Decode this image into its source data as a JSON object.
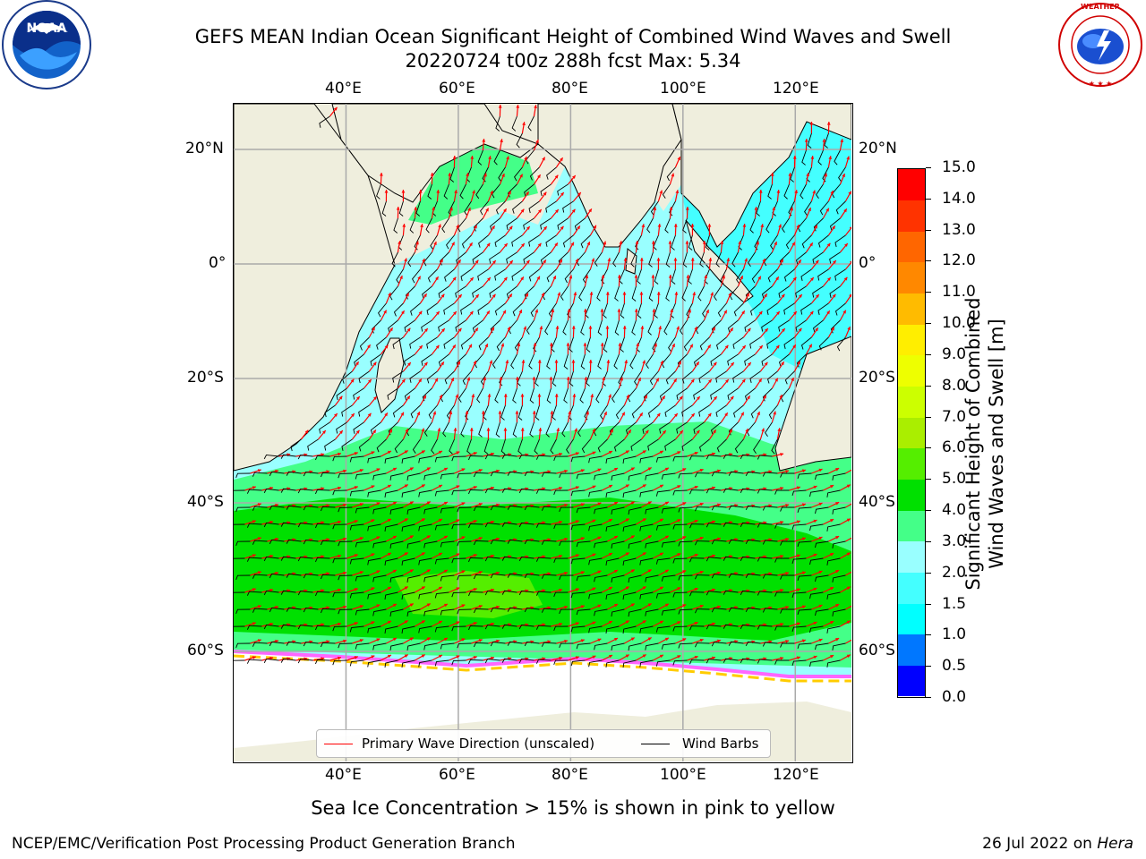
{
  "header": {
    "title_line1": "GEFS MEAN Indian Ocean Significant Height of Combined Wind Waves and Swell",
    "title_line2": "20220724 t00z 288h fcst   Max: 5.34"
  },
  "logos": {
    "left": {
      "name": "NOAA",
      "text": "NOAA",
      "ring_text": "NATIONAL OCEANIC AND ATMOSPHERIC ADMINISTRATION U.S. DEPARTMENT OF COMMERCE"
    },
    "right": {
      "name": "National Weather Service",
      "ring_text": "NATIONAL WEATHER SERVICE"
    }
  },
  "map": {
    "extent": {
      "lon": [
        20,
        130
      ],
      "lat": [
        -75,
        28
      ]
    },
    "lon_ticks": [
      40,
      60,
      80,
      100,
      120
    ],
    "lon_tick_labels": [
      "40°E",
      "60°E",
      "80°E",
      "100°E",
      "120°E"
    ],
    "lat_ticks": [
      20,
      0,
      -20,
      -40,
      -60
    ],
    "lat_tick_labels": [
      "20°N",
      "0°",
      "20°S",
      "40°S",
      "60°S"
    ],
    "grid": true,
    "colors": {
      "land": "#efeedd",
      "ice_pink": "#ff66ff",
      "ice_yellow": "#ffcc00",
      "wave_arrow": "#ff0000",
      "wind_barb": "#000000"
    }
  },
  "legend": {
    "primary_wave": "Primary Wave Direction (unscaled)",
    "wind_barbs": "Wind Barbs"
  },
  "colorbar": {
    "label_line1": "Significant Height of Combined",
    "label_line2": "Wind Waves and Swell [m]",
    "ticks": [
      "0.0",
      "0.5",
      "1.0",
      "1.5",
      "2.0",
      "3.0",
      "4.0",
      "5.0",
      "6.0",
      "7.0",
      "8.0",
      "9.0",
      "10.0",
      "11.0",
      "12.0",
      "13.0",
      "14.0",
      "15.0"
    ],
    "colors": [
      "#0000ff",
      "#0077ff",
      "#00ffff",
      "#44ffff",
      "#99ffff",
      "#44ff88",
      "#00e000",
      "#55ee00",
      "#aaee00",
      "#ccff00",
      "#eeff00",
      "#ffee00",
      "#ffbb00",
      "#ff8800",
      "#ff6600",
      "#ff3300",
      "#ff0000"
    ]
  },
  "footer": {
    "note": "Sea Ice Concentration > 15% is shown in pink to yellow",
    "credit": "NCEP/EMC/Verification Post Processing Product Generation Branch",
    "date_prefix": "26 Jul 2022 on ",
    "machine": "Hera"
  }
}
